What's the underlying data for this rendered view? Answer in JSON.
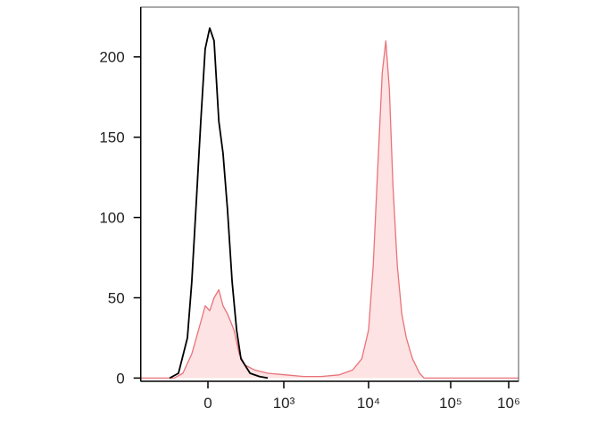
{
  "chart_data": {
    "type": "line",
    "x_scale": "biexponential",
    "xlim": [
      -740,
      1480000
    ],
    "ylim": [
      -2,
      231
    ],
    "xticks": [
      0,
      {
        "value": 1000,
        "label": "10³"
      },
      {
        "value": 10000,
        "label": "10⁴"
      },
      {
        "value": 100000,
        "label": "10⁵"
      },
      {
        "value": 1000000,
        "label": "10⁶"
      }
    ],
    "yticks": [
      0,
      50,
      100,
      150,
      200
    ],
    "series": [
      {
        "color": "#e8737a",
        "fill": "#fde3e3",
        "x": [
          -740,
          -215,
          -145,
          -87,
          -37,
          -14,
          9,
          32,
          57,
          81,
          108,
          152,
          193,
          248,
          357,
          573,
          1055,
          1713,
          2775,
          4490,
          6480,
          8320,
          10000,
          11400,
          12900,
          14650,
          16200,
          17900,
          19800,
          22400,
          25400,
          28800,
          34300,
          41900,
          47400,
          53800,
          1480000
        ],
        "values": [
          0,
          0,
          3,
          15,
          35,
          45,
          42,
          50,
          55,
          45,
          40,
          30,
          15,
          8,
          5,
          3,
          2,
          1,
          1,
          2,
          5,
          12,
          30,
          70,
          130,
          190,
          210,
          180,
          120,
          70,
          40,
          25,
          12,
          3,
          0,
          0,
          0
        ]
      },
      {
        "color": "#000000",
        "x": [
          -258,
          -178,
          -114,
          -87,
          -61,
          -37,
          -14,
          9,
          32,
          57,
          81,
          108,
          139,
          172,
          208,
          299,
          423,
          573
        ],
        "values": [
          0,
          3,
          25,
          60,
          110,
          160,
          205,
          218,
          210,
          160,
          140,
          105,
          60,
          30,
          12,
          3,
          1,
          0
        ]
      }
    ]
  }
}
